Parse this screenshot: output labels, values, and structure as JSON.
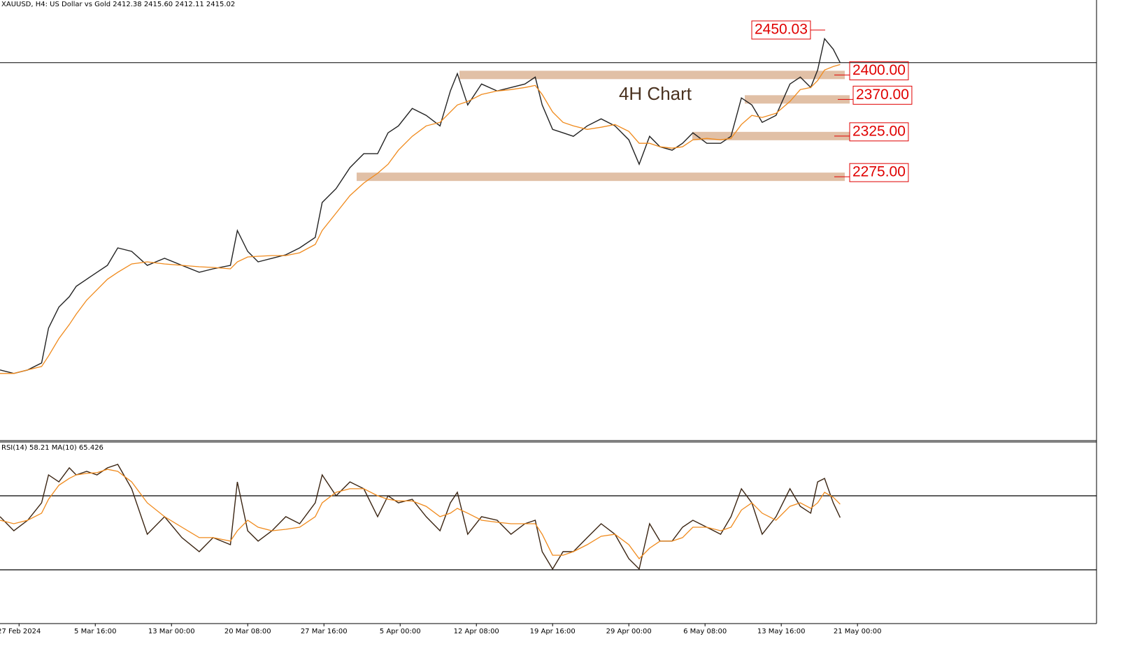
{
  "chart_data": [
    {
      "type": "line",
      "title": "XAUUSD, H4:  US Dollar vs Gold  2412.38 2415.60 2412.11 2415.02",
      "annotation": "4H Chart",
      "x": [
        -11,
        -3,
        5,
        13,
        17,
        23,
        29,
        33,
        39,
        45,
        51,
        57,
        65,
        74,
        84,
        94,
        104,
        112,
        122,
        126,
        132,
        138,
        146,
        154,
        162,
        171,
        175,
        183,
        191,
        199,
        207,
        213,
        219,
        227,
        235,
        243,
        249,
        253,
        259,
        267,
        276,
        284,
        292,
        298,
        302,
        308,
        314,
        320,
        328,
        336,
        344,
        352,
        358,
        364,
        370,
        377,
        383,
        389,
        397,
        405,
        411,
        417,
        423,
        429,
        437,
        445,
        451,
        457,
        461,
        465,
        470,
        474
      ],
      "series": [
        {
          "color": "#222222",
          "values": [
            2037.9,
            2033.6,
            2037.9,
            2046.5,
            2089.3,
            2115.0,
            2127.8,
            2140.6,
            2149.2,
            2157.8,
            2166.3,
            2187.7,
            2183.4,
            2166.3,
            2174.9,
            2166.3,
            2157.8,
            2162.0,
            2166.3,
            2209.1,
            2183.4,
            2170.6,
            2174.9,
            2179.2,
            2187.7,
            2200.6,
            2243.4,
            2260.5,
            2286.2,
            2303.3,
            2303.3,
            2329.0,
            2337.5,
            2358.9,
            2350.4,
            2337.5,
            2380.3,
            2401.7,
            2363.2,
            2388.9,
            2380.3,
            2384.6,
            2388.9,
            2397.4,
            2363.2,
            2333.2,
            2329.0,
            2324.7,
            2337.5,
            2346.1,
            2337.5,
            2320.4,
            2290.4,
            2324.7,
            2311.8,
            2307.6,
            2316.1,
            2329.0,
            2316.1,
            2316.1,
            2324.7,
            2371.8,
            2363.2,
            2341.8,
            2350.4,
            2388.9,
            2397.4,
            2384.6,
            2406.0,
            2444.5,
            2431.7,
            2415.02
          ]
        },
        {
          "color": "#f08a1c",
          "values": [
            2033.6,
            2033.6,
            2037.9,
            2042.2,
            2055.0,
            2076.4,
            2093.6,
            2106.4,
            2123.5,
            2136.4,
            2149.2,
            2157.8,
            2168.0,
            2170.6,
            2168.0,
            2166.3,
            2164.6,
            2163.7,
            2162.0,
            2170.6,
            2176.6,
            2177.4,
            2178.3,
            2178.3,
            2181.7,
            2192.0,
            2209.1,
            2230.5,
            2251.9,
            2267.3,
            2279.3,
            2290.4,
            2307.6,
            2324.7,
            2337.5,
            2341.8,
            2354.6,
            2363.2,
            2367.5,
            2376.0,
            2380.3,
            2382.0,
            2384.6,
            2387.2,
            2376.0,
            2354.6,
            2341.8,
            2337.5,
            2333.2,
            2335.8,
            2339.2,
            2330.7,
            2316.1,
            2316.1,
            2311.8,
            2310.1,
            2311.8,
            2320.4,
            2322.1,
            2320.4,
            2322.1,
            2339.2,
            2350.4,
            2347.8,
            2352.9,
            2367.5,
            2382.0,
            2384.6,
            2393.2,
            2406.0,
            2410.3,
            2412.8
          ]
        }
      ],
      "levels": {
        "values": [
          2450.03,
          2400,
          2370,
          2325,
          2275
        ],
        "value_labels": [
          "2450.03",
          "2400.00",
          "2370.00",
          "2325.00",
          "2275.00"
        ]
      },
      "xlim": [
        -11,
        622
      ],
      "ylim": [
        1952,
        2492
      ]
    },
    {
      "type": "line",
      "title": "RSI(14) 58.21 MA(10) 65.426",
      "x": [
        -11,
        -3,
        5,
        13,
        17,
        23,
        29,
        33,
        39,
        45,
        51,
        57,
        65,
        74,
        84,
        94,
        104,
        112,
        122,
        126,
        132,
        138,
        146,
        154,
        162,
        171,
        175,
        183,
        191,
        199,
        207,
        213,
        219,
        227,
        235,
        243,
        249,
        253,
        259,
        267,
        276,
        284,
        292,
        298,
        302,
        308,
        314,
        320,
        328,
        336,
        344,
        352,
        358,
        364,
        370,
        377,
        383,
        389,
        397,
        405,
        411,
        417,
        423,
        429,
        437,
        445,
        451,
        457,
        461,
        465,
        470,
        474
      ],
      "series": [
        {
          "color": "#3a2412",
          "values": [
            58.7,
            51.1,
            56.8,
            66.2,
            81.3,
            77.5,
            85.1,
            81.3,
            83.2,
            81.3,
            85.1,
            87.0,
            73.8,
            49.2,
            58.7,
            47.4,
            39.8,
            47.4,
            43.6,
            77.5,
            51.1,
            45.5,
            51.1,
            58.7,
            54.9,
            66.2,
            81.3,
            70.0,
            77.5,
            73.8,
            58.7,
            70.0,
            66.2,
            68.1,
            58.7,
            51.1,
            66.2,
            71.9,
            49.2,
            58.7,
            56.8,
            49.2,
            54.9,
            56.8,
            39.8,
            30.4,
            39.8,
            39.8,
            47.4,
            54.9,
            49.2,
            36.0,
            30.4,
            54.9,
            45.5,
            45.5,
            53.0,
            56.8,
            53.0,
            49.2,
            58.7,
            73.8,
            66.2,
            49.2,
            58.7,
            73.8,
            64.3,
            60.6,
            77.5,
            79.4,
            66.2,
            58.21
          ]
        },
        {
          "color": "#f08a1c",
          "values": [
            56.8,
            54.9,
            56.8,
            60.6,
            68.1,
            75.7,
            79.4,
            81.3,
            82.1,
            82.5,
            84.3,
            83.2,
            77.5,
            66.2,
            58.7,
            53.0,
            47.4,
            47.4,
            45.5,
            51.1,
            56.8,
            53.0,
            51.1,
            51.9,
            53.0,
            58.7,
            66.2,
            71.9,
            73.8,
            73.8,
            70.0,
            68.1,
            67.2,
            67.2,
            64.3,
            58.7,
            60.6,
            63.2,
            60.6,
            56.8,
            55.7,
            54.9,
            54.9,
            54.9,
            49.2,
            37.9,
            37.9,
            39.8,
            43.6,
            48.1,
            49.2,
            43.6,
            36.0,
            41.7,
            45.5,
            45.5,
            47.4,
            53.0,
            53.0,
            51.1,
            53.0,
            62.3,
            66.2,
            60.6,
            56.8,
            64.3,
            66.2,
            63.2,
            66.2,
            71.9,
            69.2,
            65.426
          ]
        }
      ],
      "levels": [
        30,
        70
      ],
      "xlim": [
        -11,
        622
      ],
      "ylim": [
        0,
        100
      ],
      "xticks": [
        {
          "value": 0,
          "label": "27 Feb 2024"
        },
        {
          "value": 44,
          "label": "5 Mar 16:00"
        },
        {
          "value": 88,
          "label": "13 Mar 00:00"
        },
        {
          "value": 132,
          "label": "20 Mar 08:00"
        },
        {
          "value": 176,
          "label": "27 Mar 16:00"
        },
        {
          "value": 220,
          "label": "5 Apr 00:00"
        },
        {
          "value": 264,
          "label": "12 Apr 08:00"
        },
        {
          "value": 308,
          "label": "19 Apr 16:00"
        },
        {
          "value": 352,
          "label": "29 Apr 00:00"
        },
        {
          "value": 396,
          "label": "6 May 08:00"
        },
        {
          "value": 440,
          "label": "13 May 16:00"
        },
        {
          "value": 484,
          "label": "21 May 00:00"
        }
      ]
    }
  ]
}
